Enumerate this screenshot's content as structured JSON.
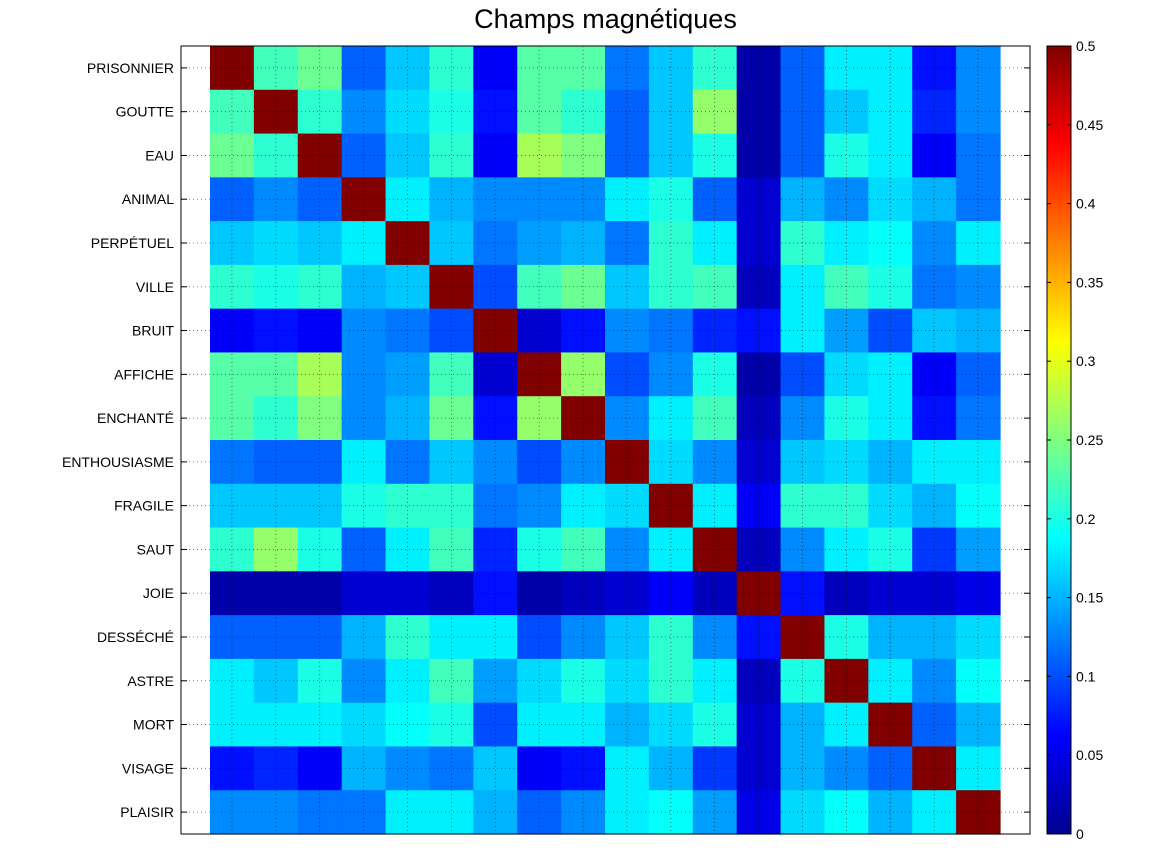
{
  "chart_data": {
    "type": "heatmap",
    "title": "Champs magnétiques",
    "categories": [
      "PRISONNIER",
      "GOUTTE",
      "EAU",
      "ANIMAL",
      "PERPÉTUEL",
      "VILLE",
      "BRUIT",
      "AFFICHE",
      "ENCHANTÉ",
      "ENTHOUSIASME",
      "FRAGILE",
      "SAUT",
      "JOIE",
      "DESSÉCHÉ",
      "ASTRE",
      "MORT",
      "VISAGE",
      "PLAISIR"
    ],
    "colormap": "jet",
    "clim": [
      0,
      0.5
    ],
    "colorbar_ticks": [
      "0",
      "0.05",
      "0.1",
      "0.15",
      "0.2",
      "0.25",
      "0.3",
      "0.35",
      "0.4",
      "0.45",
      "0.5"
    ],
    "grid": true,
    "matrix": [
      [
        0.5,
        0.22,
        0.24,
        0.11,
        0.16,
        0.21,
        0.06,
        0.23,
        0.23,
        0.12,
        0.16,
        0.21,
        0.02,
        0.11,
        0.18,
        0.18,
        0.07,
        0.13
      ],
      [
        0.22,
        0.5,
        0.21,
        0.13,
        0.17,
        0.2,
        0.07,
        0.23,
        0.21,
        0.11,
        0.16,
        0.26,
        0.02,
        0.11,
        0.16,
        0.18,
        0.08,
        0.13
      ],
      [
        0.24,
        0.21,
        0.5,
        0.11,
        0.16,
        0.21,
        0.06,
        0.27,
        0.25,
        0.11,
        0.16,
        0.2,
        0.02,
        0.11,
        0.2,
        0.18,
        0.06,
        0.12
      ],
      [
        0.11,
        0.13,
        0.11,
        0.5,
        0.18,
        0.15,
        0.13,
        0.13,
        0.13,
        0.18,
        0.2,
        0.11,
        0.04,
        0.15,
        0.13,
        0.17,
        0.15,
        0.12
      ],
      [
        0.16,
        0.17,
        0.16,
        0.18,
        0.5,
        0.16,
        0.12,
        0.14,
        0.15,
        0.12,
        0.21,
        0.18,
        0.04,
        0.21,
        0.18,
        0.19,
        0.13,
        0.18
      ],
      [
        0.21,
        0.2,
        0.21,
        0.15,
        0.16,
        0.5,
        0.1,
        0.22,
        0.24,
        0.16,
        0.21,
        0.22,
        0.03,
        0.18,
        0.22,
        0.2,
        0.12,
        0.13
      ],
      [
        0.06,
        0.07,
        0.06,
        0.13,
        0.12,
        0.1,
        0.5,
        0.04,
        0.07,
        0.13,
        0.12,
        0.08,
        0.07,
        0.18,
        0.14,
        0.1,
        0.16,
        0.15
      ],
      [
        0.23,
        0.23,
        0.27,
        0.13,
        0.14,
        0.22,
        0.04,
        0.5,
        0.26,
        0.1,
        0.13,
        0.2,
        0.02,
        0.1,
        0.17,
        0.18,
        0.06,
        0.11
      ],
      [
        0.23,
        0.21,
        0.25,
        0.13,
        0.15,
        0.24,
        0.07,
        0.26,
        0.5,
        0.13,
        0.18,
        0.22,
        0.03,
        0.13,
        0.2,
        0.18,
        0.07,
        0.12
      ],
      [
        0.12,
        0.11,
        0.11,
        0.18,
        0.12,
        0.16,
        0.13,
        0.1,
        0.13,
        0.5,
        0.17,
        0.13,
        0.04,
        0.16,
        0.17,
        0.15,
        0.18,
        0.18
      ],
      [
        0.16,
        0.16,
        0.16,
        0.2,
        0.21,
        0.21,
        0.12,
        0.13,
        0.18,
        0.17,
        0.5,
        0.18,
        0.06,
        0.21,
        0.21,
        0.17,
        0.15,
        0.19
      ],
      [
        0.21,
        0.26,
        0.2,
        0.11,
        0.18,
        0.22,
        0.08,
        0.2,
        0.22,
        0.13,
        0.18,
        0.5,
        0.03,
        0.13,
        0.18,
        0.2,
        0.09,
        0.14
      ],
      [
        0.02,
        0.02,
        0.02,
        0.04,
        0.04,
        0.03,
        0.07,
        0.02,
        0.03,
        0.04,
        0.06,
        0.03,
        0.5,
        0.07,
        0.03,
        0.04,
        0.04,
        0.05
      ],
      [
        0.11,
        0.11,
        0.11,
        0.15,
        0.21,
        0.18,
        0.18,
        0.1,
        0.13,
        0.16,
        0.21,
        0.13,
        0.07,
        0.5,
        0.2,
        0.15,
        0.15,
        0.17
      ],
      [
        0.18,
        0.16,
        0.2,
        0.13,
        0.18,
        0.22,
        0.14,
        0.17,
        0.2,
        0.17,
        0.21,
        0.18,
        0.03,
        0.2,
        0.5,
        0.18,
        0.13,
        0.19
      ],
      [
        0.18,
        0.18,
        0.18,
        0.17,
        0.19,
        0.2,
        0.1,
        0.18,
        0.18,
        0.15,
        0.17,
        0.2,
        0.04,
        0.15,
        0.18,
        0.5,
        0.11,
        0.15
      ],
      [
        0.07,
        0.08,
        0.06,
        0.15,
        0.13,
        0.12,
        0.16,
        0.06,
        0.07,
        0.18,
        0.15,
        0.09,
        0.04,
        0.15,
        0.13,
        0.11,
        0.5,
        0.18
      ],
      [
        0.13,
        0.13,
        0.12,
        0.12,
        0.18,
        0.18,
        0.15,
        0.11,
        0.13,
        0.18,
        0.19,
        0.14,
        0.05,
        0.17,
        0.19,
        0.15,
        0.18,
        0.5
      ]
    ]
  }
}
